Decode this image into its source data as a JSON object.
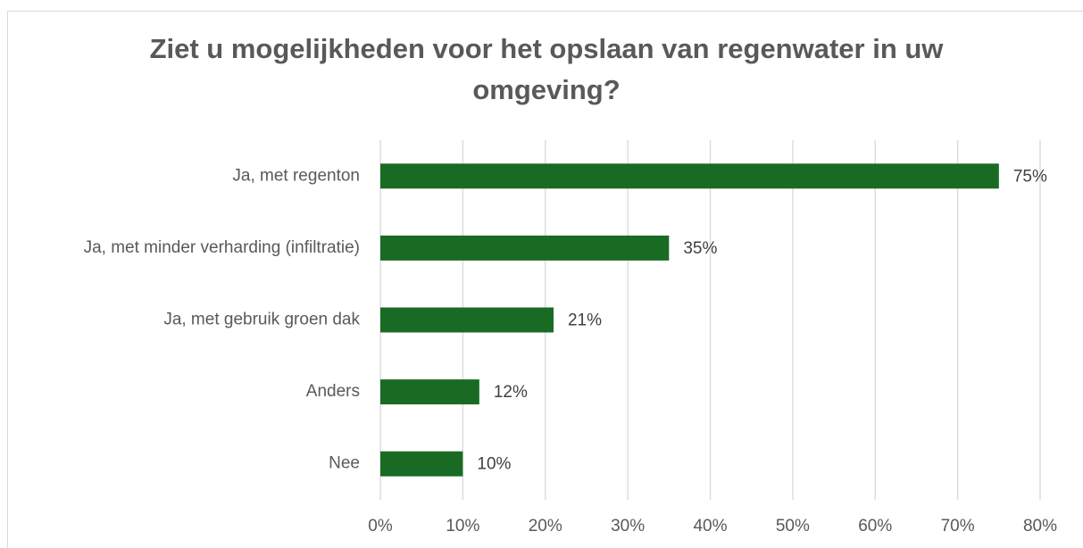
{
  "chart_data": {
    "type": "bar",
    "orientation": "horizontal",
    "title": "Ziet u mogelijkheden voor het opslaan van regenwater in uw omgeving?",
    "categories": [
      "Ja, met regenton",
      "Ja, met minder verharding (infiltratie)",
      "Ja, met gebruik groen dak",
      "Anders",
      "Nee"
    ],
    "values": [
      75,
      35,
      21,
      12,
      10
    ],
    "value_labels": [
      "75%",
      "35%",
      "21%",
      "12%",
      "10%"
    ],
    "color": "#196b24",
    "xlim": [
      0,
      80
    ],
    "xticks": [
      {
        "value": 0,
        "label": "0%"
      },
      {
        "value": 10,
        "label": "10%"
      },
      {
        "value": 20,
        "label": "20%"
      },
      {
        "value": 30,
        "label": "30%"
      },
      {
        "value": 40,
        "label": "40%"
      },
      {
        "value": 50,
        "label": "50%"
      },
      {
        "value": 60,
        "label": "60%"
      },
      {
        "value": 70,
        "label": "70%"
      },
      {
        "value": 80,
        "label": "80%"
      }
    ],
    "grid": true
  }
}
